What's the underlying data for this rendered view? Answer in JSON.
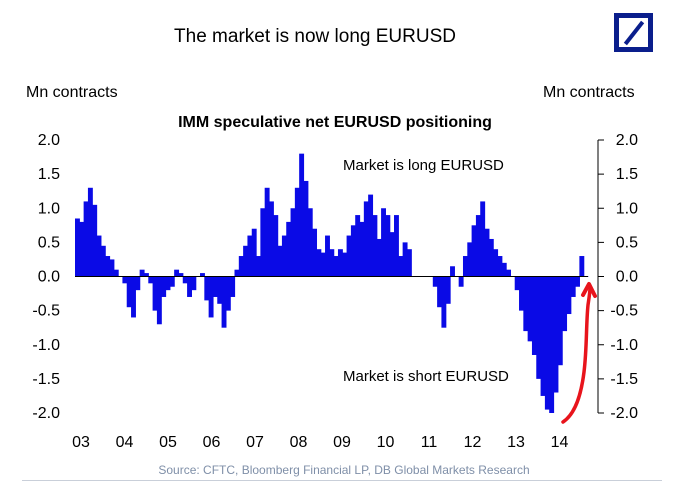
{
  "slide": {
    "title": "The market is now long EURUSD"
  },
  "units": {
    "left": "Mn contracts",
    "right": "Mn contracts"
  },
  "chart_data": {
    "type": "area",
    "title": "IMM speculative net EURUSD positioning",
    "ylabel_left": "Mn contracts",
    "ylabel_right": "Mn contracts",
    "ylim": [
      -2.0,
      2.0
    ],
    "yticks": [
      "2.0",
      "1.5",
      "1.0",
      "0.5",
      "0.0",
      "-0.5",
      "-1.0",
      "-1.5",
      "-2.0"
    ],
    "xlim": [
      2003.0,
      2014.9
    ],
    "xticks": [
      "03",
      "04",
      "05",
      "06",
      "07",
      "08",
      "09",
      "10",
      "11",
      "12",
      "13",
      "14"
    ],
    "annotations": {
      "long": "Market is long EURUSD",
      "short": "Market is short EURUSD"
    },
    "color": "#0a0ae6",
    "highlight_color": "#e8141c",
    "x": [
      2003.0,
      2003.1,
      2003.2,
      2003.3,
      2003.4,
      2003.5,
      2003.6,
      2003.7,
      2003.8,
      2003.9,
      2004.0,
      2004.1,
      2004.2,
      2004.3,
      2004.4,
      2004.5,
      2004.6,
      2004.7,
      2004.8,
      2004.9,
      2005.0,
      2005.1,
      2005.2,
      2005.3,
      2005.4,
      2005.5,
      2005.6,
      2005.7,
      2005.8,
      2005.9,
      2006.0,
      2006.1,
      2006.2,
      2006.3,
      2006.4,
      2006.5,
      2006.6,
      2006.7,
      2006.8,
      2006.9,
      2007.0,
      2007.1,
      2007.2,
      2007.3,
      2007.4,
      2007.5,
      2007.6,
      2007.7,
      2007.8,
      2007.9,
      2008.0,
      2008.1,
      2008.2,
      2008.3,
      2008.4,
      2008.5,
      2008.6,
      2008.7,
      2008.8,
      2008.9,
      2009.0,
      2009.1,
      2009.2,
      2009.3,
      2009.4,
      2009.5,
      2009.6,
      2009.7,
      2009.8,
      2009.9,
      2010.0,
      2010.1,
      2010.2,
      2010.3,
      2010.4,
      2010.5,
      2010.6,
      2010.7,
      2010.8,
      2010.9,
      2011.0,
      2011.1,
      2011.2,
      2011.3,
      2011.4,
      2011.5,
      2011.6,
      2011.7,
      2011.8,
      2011.9,
      2012.0,
      2012.1,
      2012.2,
      2012.3,
      2012.4,
      2012.5,
      2012.6,
      2012.7,
      2012.8,
      2012.9,
      2013.0,
      2013.1,
      2013.2,
      2013.3,
      2013.4,
      2013.5,
      2013.6,
      2013.7,
      2013.8,
      2013.9,
      2014.0,
      2014.1,
      2014.2,
      2014.3,
      2014.4,
      2014.5,
      2014.6,
      2014.7,
      2014.8
    ],
    "values": [
      0.85,
      0.8,
      1.1,
      1.3,
      1.05,
      0.6,
      0.45,
      0.3,
      0.25,
      0.1,
      0.0,
      -0.1,
      -0.45,
      -0.6,
      -0.2,
      0.1,
      0.05,
      -0.1,
      -0.5,
      -0.7,
      -0.3,
      -0.2,
      -0.15,
      0.1,
      0.05,
      -0.1,
      -0.3,
      -0.2,
      0.0,
      0.05,
      -0.35,
      -0.6,
      -0.3,
      -0.4,
      -0.75,
      -0.5,
      -0.3,
      0.1,
      0.3,
      0.45,
      0.6,
      0.7,
      0.3,
      1.0,
      1.3,
      1.1,
      0.9,
      0.45,
      0.6,
      0.8,
      1.0,
      1.3,
      1.8,
      1.4,
      1.0,
      0.7,
      0.4,
      0.35,
      0.6,
      0.4,
      0.3,
      0.4,
      0.35,
      0.6,
      0.75,
      0.9,
      0.8,
      1.1,
      1.2,
      0.9,
      0.55,
      1.0,
      0.9,
      0.65,
      0.9,
      0.3,
      0.5,
      0.4,
      0.0,
      0.0,
      0.0,
      0.0,
      0.0,
      -0.15,
      -0.45,
      -0.75,
      -0.4,
      0.15,
      0.0,
      -0.15,
      0.3,
      0.5,
      0.75,
      0.9,
      1.1,
      0.7,
      0.55,
      0.4,
      0.3,
      0.2,
      0.1,
      0.0,
      -0.2,
      -0.5,
      -0.8,
      -0.95,
      -1.15,
      -1.5,
      -1.75,
      -1.95,
      -2.0,
      -1.7,
      -1.3,
      -0.8,
      -0.55,
      -0.3,
      -0.15,
      0.3,
      0.0
    ]
  },
  "source": "Source: CFTC, Bloomberg Financial LP, DB Global Markets Research"
}
